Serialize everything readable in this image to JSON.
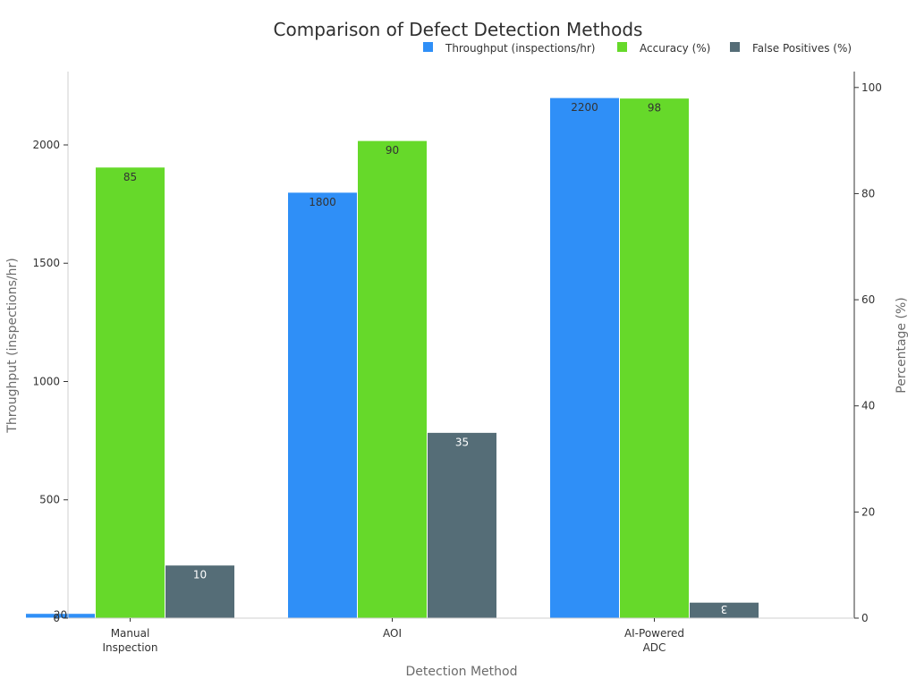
{
  "chart_data": {
    "type": "bar",
    "title": "Comparison of Defect Detection Methods",
    "categories": [
      [
        "Manual",
        "Inspection"
      ],
      [
        "AOI"
      ],
      [
        "AI-Powered",
        "ADC"
      ]
    ],
    "xlabel": "Detection Method",
    "ylabel_left": "Throughput (inspections/hr)",
    "ylabel_right": "Percentage (%)",
    "ylim_left": [
      0,
      2310
    ],
    "yticks_left": [
      0,
      500,
      1000,
      1500,
      2000
    ],
    "ylim_right": [
      0,
      103
    ],
    "yticks_right": [
      0,
      20,
      40,
      60,
      80,
      100
    ],
    "legend_position": "top-right",
    "grid": false,
    "series": [
      {
        "name": "Throughput (inspections/hr)",
        "axis": "left",
        "color": "#2f8ff7",
        "values": [
          20,
          1800,
          2200
        ],
        "labels": [
          "20",
          "1800",
          "2200"
        ]
      },
      {
        "name": "Accuracy (%)",
        "axis": "right",
        "color": "#66d92a",
        "values": [
          85,
          90,
          98
        ],
        "labels": [
          "85",
          "90",
          "98"
        ]
      },
      {
        "name": "False Positives (%)",
        "axis": "right",
        "color": "#556d77",
        "values": [
          10,
          35,
          3
        ],
        "labels": [
          "10",
          "35",
          "3"
        ]
      }
    ]
  }
}
